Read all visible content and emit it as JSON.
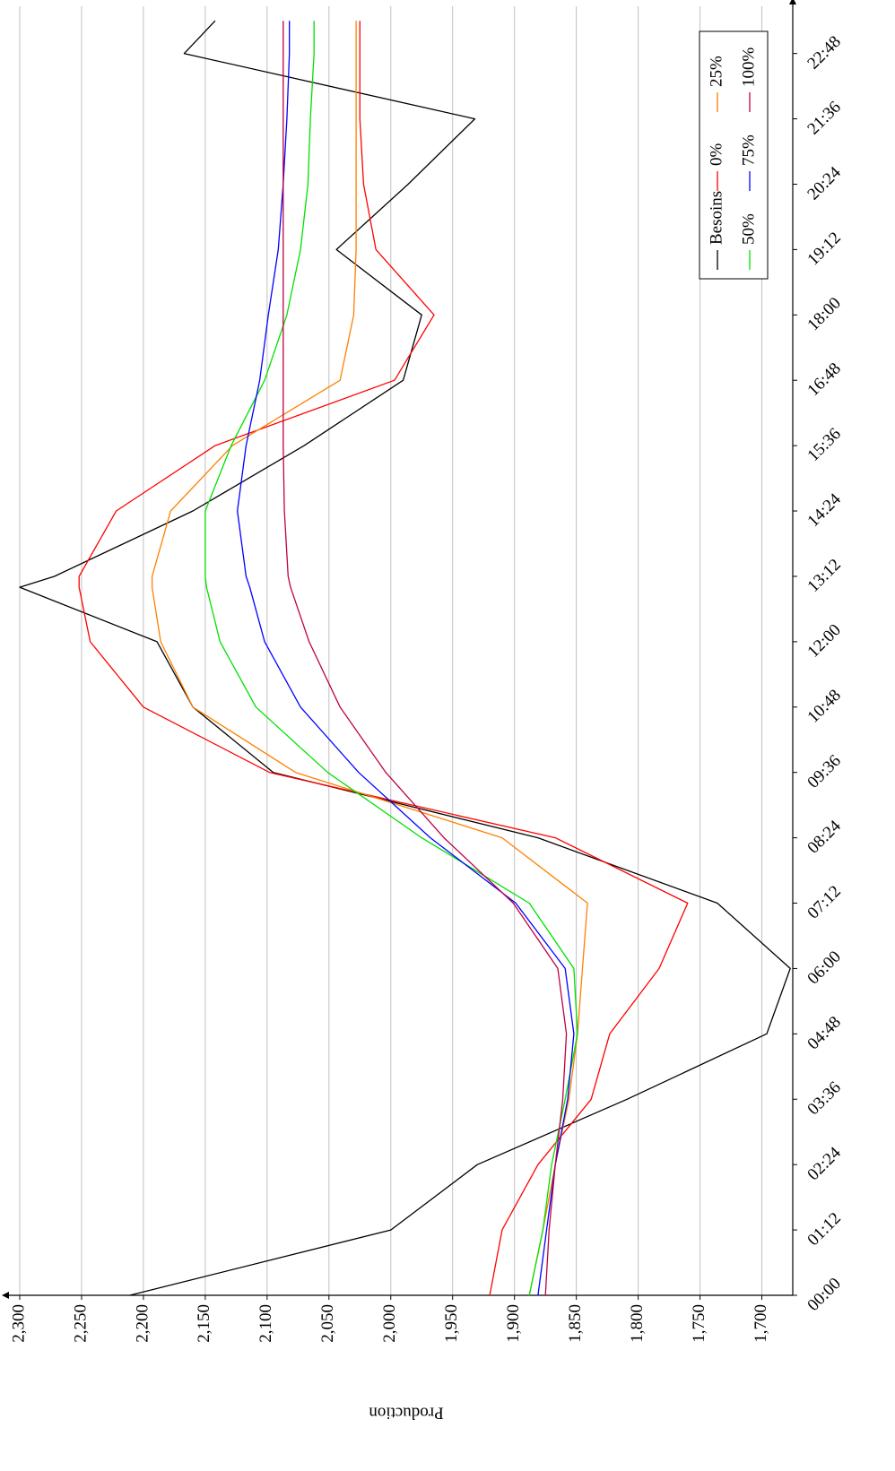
{
  "chart_data": {
    "type": "line",
    "y_label": "Production",
    "x": [
      0,
      72,
      144,
      216,
      288,
      360,
      432,
      504,
      576,
      648,
      720,
      780,
      792,
      864,
      936,
      1008,
      1080,
      1152,
      1224,
      1296,
      1368,
      1404
    ],
    "xlim": [
      0,
      1420
    ],
    "xticks": [
      {
        "value": 0,
        "label": "00:00"
      },
      {
        "value": 72,
        "label": "01:12"
      },
      {
        "value": 144,
        "label": "02:24"
      },
      {
        "value": 216,
        "label": "03:36"
      },
      {
        "value": 288,
        "label": "04:48"
      },
      {
        "value": 360,
        "label": "06:00"
      },
      {
        "value": 432,
        "label": "07:12"
      },
      {
        "value": 504,
        "label": "08:24"
      },
      {
        "value": 576,
        "label": "09:36"
      },
      {
        "value": 648,
        "label": "10:48"
      },
      {
        "value": 720,
        "label": "12:00"
      },
      {
        "value": 792,
        "label": "13:12"
      },
      {
        "value": 864,
        "label": "14:24"
      },
      {
        "value": 936,
        "label": "15:36"
      },
      {
        "value": 1008,
        "label": "16:48"
      },
      {
        "value": 1080,
        "label": "18:00"
      },
      {
        "value": 1152,
        "label": "19:12"
      },
      {
        "value": 1224,
        "label": "20:24"
      },
      {
        "value": 1296,
        "label": "21:36"
      },
      {
        "value": 1368,
        "label": "22:48"
      }
    ],
    "ylim": [
      1675,
      2300
    ],
    "yticks": [
      {
        "value": 1700,
        "label": "1,700"
      },
      {
        "value": 1750,
        "label": "1,750"
      },
      {
        "value": 1800,
        "label": "1,800"
      },
      {
        "value": 1850,
        "label": "1,850"
      },
      {
        "value": 1900,
        "label": "1,900"
      },
      {
        "value": 1950,
        "label": "1,950"
      },
      {
        "value": 2000,
        "label": "2,000"
      },
      {
        "value": 2050,
        "label": "2,050"
      },
      {
        "value": 2100,
        "label": "2,100"
      },
      {
        "value": 2150,
        "label": "2,150"
      },
      {
        "value": 2200,
        "label": "2,200"
      },
      {
        "value": 2250,
        "label": "2,250"
      },
      {
        "value": 2300,
        "label": "2,300"
      }
    ],
    "grid": true,
    "legend": "lower right",
    "series": [
      {
        "name": "Besoins",
        "color": "#000000",
        "values": [
          2211,
          2000,
          1930,
          1809,
          1696,
          1677,
          1736,
          1881,
          2095,
          2160,
          2189,
          2300,
          2272,
          2160,
          2070,
          1990,
          1975,
          2044,
          1986,
          1932,
          2167,
          2142
        ]
      },
      {
        "name": "0%",
        "color": "#ff0000",
        "values": [
          1920,
          1910,
          1881,
          1838,
          1823,
          1783,
          1760,
          1867,
          2098,
          2200,
          2243,
          2252,
          2252,
          2222,
          2142,
          1997,
          1965,
          2012,
          2022,
          2025,
          2025,
          2025
        ]
      },
      {
        "name": "25%",
        "color": "#ff8000",
        "values": [
          1888,
          1877,
          1867,
          1856,
          1849,
          1845,
          1841,
          1910,
          2077,
          2160,
          2186,
          2193,
          2193,
          2178,
          2128,
          2041,
          2030,
          2028,
          2028,
          2028,
          2028,
          2028
        ]
      },
      {
        "name": "50%",
        "color": "#00e000",
        "values": [
          1888,
          1877,
          1870,
          1859,
          1849,
          1852,
          1888,
          1975,
          2051,
          2109,
          2138,
          2149,
          2150,
          2150,
          2129,
          2102,
          2084,
          2073,
          2067,
          2065,
          2062,
          2062
        ]
      },
      {
        "name": "75%",
        "color": "#0000ff",
        "values": [
          1881,
          1874,
          1867,
          1857,
          1852,
          1859,
          1899,
          1968,
          2026,
          2073,
          2102,
          2114,
          2117,
          2124,
          2117,
          2106,
          2099,
          2091,
          2087,
          2084,
          2082,
          2082
        ]
      },
      {
        "name": "100%",
        "color": "#bf0040",
        "values": [
          1875,
          1872,
          1867,
          1861,
          1858,
          1865,
          1901,
          1957,
          2004,
          2041,
          2066,
          2081,
          2083,
          2086,
          2087,
          2087,
          2087,
          2087,
          2087,
          2087,
          2087,
          2087
        ]
      }
    ]
  }
}
